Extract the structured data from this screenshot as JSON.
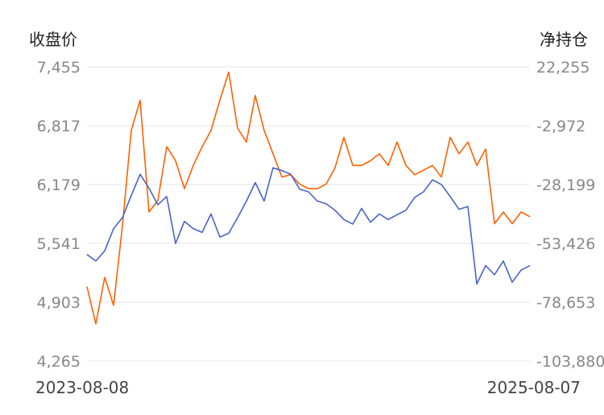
{
  "chart_data": {
    "type": "line",
    "y_left_title": "收盘价",
    "y_right_title": "净持仓",
    "y_left_ticks": [
      "7,455",
      "6,817",
      "6,179",
      "5,541",
      "4,903",
      "4,265"
    ],
    "y_right_ticks": [
      "22,255",
      "-2,972",
      "-28,199",
      "-53,426",
      "-78,653",
      "-103,880"
    ],
    "ylim_left": [
      4265,
      7455
    ],
    "ylim_right": [
      -103880,
      22255
    ],
    "x_start_label": "2023-08-08",
    "x_end_label": "2025-08-07",
    "grid": true,
    "colors": {
      "close": "#4a63c6",
      "net": "#ff6000"
    },
    "series": [
      {
        "axis": "left",
        "x": [
          0,
          0.02,
          0.04,
          0.06,
          0.08,
          0.1,
          0.12,
          0.14,
          0.16,
          0.18,
          0.2,
          0.22,
          0.24,
          0.26,
          0.28,
          0.3,
          0.32,
          0.34,
          0.36,
          0.38,
          0.4,
          0.42,
          0.44,
          0.46,
          0.48,
          0.5,
          0.52,
          0.54,
          0.56,
          0.58,
          0.6,
          0.62,
          0.64,
          0.66,
          0.68,
          0.7,
          0.72,
          0.74,
          0.76,
          0.78,
          0.8,
          0.82,
          0.84,
          0.86,
          0.88,
          0.9,
          0.92,
          0.94,
          0.96,
          0.98,
          1
        ],
        "values": [
          5420,
          5350,
          5460,
          5700,
          5820,
          6060,
          6290,
          6140,
          5960,
          6050,
          5540,
          5780,
          5700,
          5660,
          5860,
          5610,
          5650,
          5820,
          6000,
          6200,
          6000,
          6360,
          6330,
          6290,
          6130,
          6100,
          6000,
          5970,
          5900,
          5800,
          5750,
          5920,
          5770,
          5860,
          5800,
          5850,
          5900,
          6040,
          6100,
          6230,
          6180,
          6050,
          5910,
          5940,
          5100,
          5300,
          5200,
          5350,
          5120,
          5250,
          5300
        ]
      },
      {
        "axis": "right",
        "x": [
          0,
          0.02,
          0.04,
          0.06,
          0.08,
          0.1,
          0.12,
          0.14,
          0.16,
          0.18,
          0.2,
          0.22,
          0.24,
          0.26,
          0.28,
          0.3,
          0.32,
          0.34,
          0.36,
          0.38,
          0.4,
          0.42,
          0.44,
          0.46,
          0.48,
          0.5,
          0.52,
          0.54,
          0.56,
          0.58,
          0.6,
          0.62,
          0.64,
          0.66,
          0.68,
          0.7,
          0.72,
          0.74,
          0.76,
          0.78,
          0.8,
          0.82,
          0.84,
          0.86,
          0.88,
          0.9,
          0.92,
          0.94,
          0.96,
          0.98,
          1
        ],
        "values": [
          -72000,
          -88000,
          -68000,
          -80000,
          -46000,
          -5000,
          8000,
          -40000,
          -35000,
          -12000,
          -18000,
          -30000,
          -20000,
          -12000,
          -5000,
          8000,
          20000,
          -4000,
          -10000,
          10000,
          -5000,
          -15000,
          -25000,
          -24000,
          -28000,
          -30000,
          -30000,
          -28000,
          -21000,
          -8000,
          -20000,
          -20000,
          -18000,
          -15000,
          -20000,
          -10000,
          -20000,
          -24000,
          -22000,
          -20000,
          -25000,
          -8000,
          -15000,
          -10000,
          -20000,
          -13000,
          -45000,
          -40000,
          -45000,
          -40000,
          -42000
        ]
      }
    ]
  }
}
